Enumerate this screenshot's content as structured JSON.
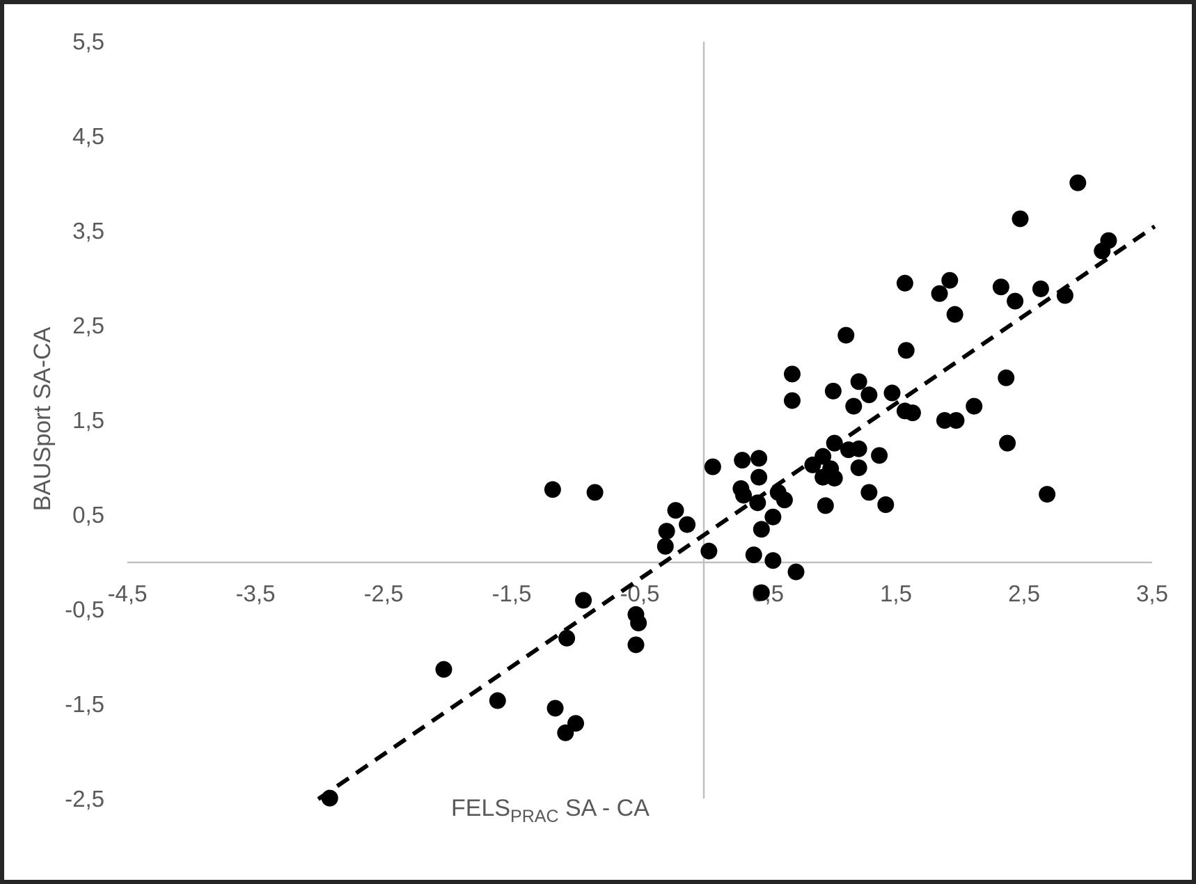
{
  "chart_data": {
    "type": "scatter",
    "title": "",
    "xlabel": {
      "main": "FELS",
      "sub": "PRAC",
      "rest": "  SA - CA"
    },
    "ylabel": "BAUSport SA-CA",
    "xlim": [
      -4.5,
      3.5
    ],
    "ylim": [
      -2.5,
      5.5
    ],
    "decimal_separator": ",",
    "grid": false,
    "legend": null,
    "x_ticks": [
      {
        "value": -4.5,
        "label": "-4,5"
      },
      {
        "value": -3.5,
        "label": "-3,5"
      },
      {
        "value": -2.5,
        "label": "-2,5"
      },
      {
        "value": -1.5,
        "label": "-1,5"
      },
      {
        "value": -0.5,
        "label": "-0,5"
      },
      {
        "value": 0.5,
        "label": "0,5"
      },
      {
        "value": 1.5,
        "label": "1,5"
      },
      {
        "value": 2.5,
        "label": "2,5"
      },
      {
        "value": 3.5,
        "label": "3,5"
      }
    ],
    "y_ticks": [
      {
        "value": 5.5,
        "label": "5,5"
      },
      {
        "value": 4.5,
        "label": "4,5"
      },
      {
        "value": 3.5,
        "label": "3,5"
      },
      {
        "value": 2.5,
        "label": "2,5"
      },
      {
        "value": 1.5,
        "label": "1,5"
      },
      {
        "value": 0.5,
        "label": "0,5"
      },
      {
        "value": -0.5,
        "label": "-0,5"
      },
      {
        "value": -1.5,
        "label": "-1,5"
      },
      {
        "value": -2.5,
        "label": "-2,5"
      }
    ],
    "marker": {
      "shape": "circle",
      "color": "#000000",
      "radius_px": 12
    },
    "axis_line_color": "#c0c0c0",
    "tick_label_color": "#595959",
    "figure_border_color": "#262626",
    "trendline": {
      "style": "dashed",
      "color": "#000000",
      "x1": -3.01,
      "y1": -2.5,
      "x2": 3.52,
      "y2": 3.55
    },
    "points": [
      [
        -2.92,
        -2.49
      ],
      [
        -2.03,
        -1.13
      ],
      [
        -1.61,
        -1.46
      ],
      [
        -1.16,
        -1.54
      ],
      [
        -1.0,
        -1.7
      ],
      [
        -1.08,
        -1.8
      ],
      [
        -1.07,
        -0.8
      ],
      [
        -0.94,
        -0.4
      ],
      [
        -0.53,
        -0.55
      ],
      [
        -0.51,
        -0.64
      ],
      [
        -0.53,
        -0.87
      ],
      [
        0.45,
        -0.32
      ],
      [
        0.72,
        -0.1
      ],
      [
        -1.18,
        0.77
      ],
      [
        -0.85,
        0.74
      ],
      [
        -0.29,
        0.33
      ],
      [
        -0.3,
        0.17
      ],
      [
        -0.22,
        0.55
      ],
      [
        -0.13,
        0.4
      ],
      [
        0.04,
        0.12
      ],
      [
        0.07,
        1.01
      ],
      [
        0.39,
        0.08
      ],
      [
        0.54,
        0.02
      ],
      [
        0.54,
        0.48
      ],
      [
        0.45,
        0.35
      ],
      [
        0.3,
        1.08
      ],
      [
        0.29,
        0.78
      ],
      [
        0.31,
        0.71
      ],
      [
        0.42,
        0.63
      ],
      [
        0.43,
        1.1
      ],
      [
        0.43,
        0.9
      ],
      [
        0.58,
        0.74
      ],
      [
        0.63,
        0.66
      ],
      [
        0.69,
        1.99
      ],
      [
        0.69,
        1.71
      ],
      [
        0.85,
        1.03
      ],
      [
        0.93,
        1.12
      ],
      [
        0.99,
        0.99
      ],
      [
        0.93,
        0.9
      ],
      [
        1.02,
        0.89
      ],
      [
        0.95,
        0.6
      ],
      [
        1.01,
        1.81
      ],
      [
        1.02,
        1.26
      ],
      [
        1.11,
        2.4
      ],
      [
        1.13,
        1.19
      ],
      [
        1.21,
        1.2
      ],
      [
        1.21,
        1.0
      ],
      [
        1.17,
        1.65
      ],
      [
        1.21,
        1.91
      ],
      [
        1.29,
        1.77
      ],
      [
        1.29,
        0.74
      ],
      [
        1.37,
        1.13
      ],
      [
        1.42,
        0.61
      ],
      [
        1.47,
        1.79
      ],
      [
        1.57,
        2.95
      ],
      [
        1.58,
        2.24
      ],
      [
        1.57,
        1.6
      ],
      [
        1.63,
        1.58
      ],
      [
        1.88,
        1.5
      ],
      [
        1.97,
        1.5
      ],
      [
        1.92,
        2.98
      ],
      [
        1.84,
        2.84
      ],
      [
        1.96,
        2.62
      ],
      [
        2.11,
        1.65
      ],
      [
        2.32,
        2.91
      ],
      [
        2.36,
        1.95
      ],
      [
        2.37,
        1.26
      ],
      [
        2.43,
        2.76
      ],
      [
        2.47,
        3.63
      ],
      [
        2.63,
        2.89
      ],
      [
        2.68,
        0.72
      ],
      [
        2.82,
        2.82
      ],
      [
        2.92,
        4.01
      ],
      [
        3.11,
        3.29
      ],
      [
        3.16,
        3.4
      ]
    ]
  }
}
